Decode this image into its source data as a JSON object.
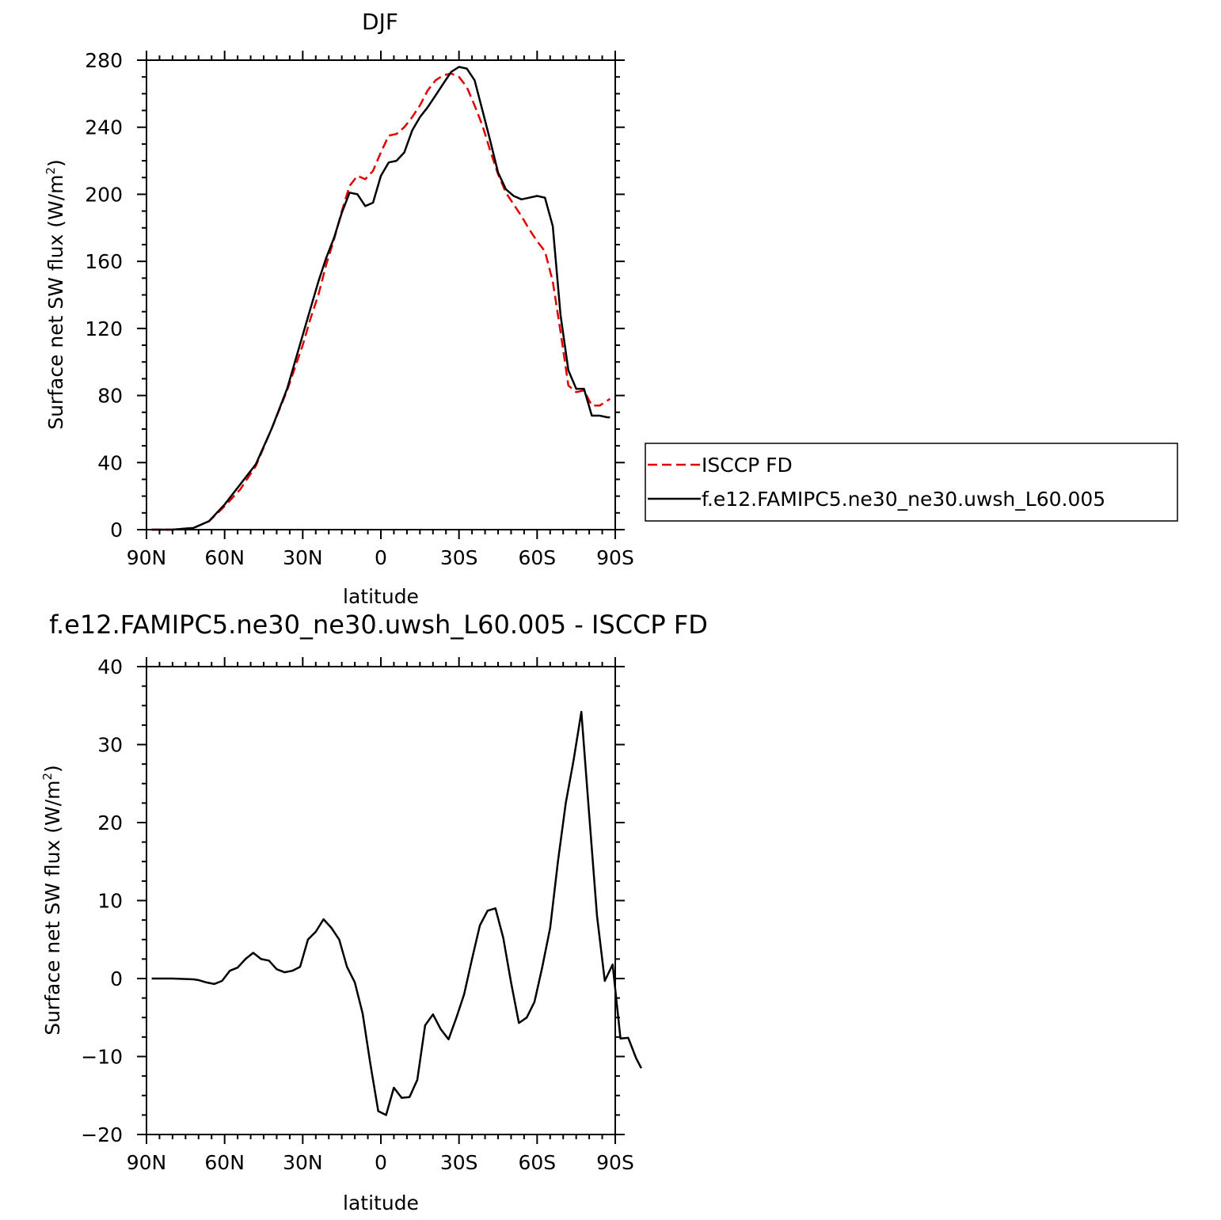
{
  "chart_data": [
    {
      "type": "line",
      "title": "DJF",
      "xlabel": "latitude",
      "ylabel": "Surface net SW flux (W/m",
      "ylabel_sup": "2",
      "ylabel_close": ")",
      "xlim": [
        90,
        -90
      ],
      "ylim": [
        0,
        280
      ],
      "x_ticks": [
        90,
        60,
        30,
        0,
        -30,
        -60,
        -90
      ],
      "x_tick_labels": [
        "90N",
        "60N",
        "30N",
        "0",
        "30S",
        "60S",
        "90S"
      ],
      "y_ticks": [
        0,
        40,
        80,
        120,
        160,
        200,
        240,
        280
      ],
      "y_tick_labels": [
        "0",
        "40",
        "80",
        "120",
        "160",
        "200",
        "240",
        "280"
      ],
      "legend": {
        "position": "right",
        "entries": [
          "ISCCP FD",
          "f.e12.FAMIPC5.ne30_ne30.uwsh_L60.005"
        ]
      },
      "series": [
        {
          "name": "ISCCP FD",
          "color": "#e00000",
          "dash": true,
          "points": [
            [
              88,
              0
            ],
            [
              80,
              0
            ],
            [
              72,
              1
            ],
            [
              66,
              5
            ],
            [
              60,
              14
            ],
            [
              54,
              24
            ],
            [
              48,
              38
            ],
            [
              42,
              60
            ],
            [
              36,
              83
            ],
            [
              30,
              110
            ],
            [
              27,
              126
            ],
            [
              24,
              140
            ],
            [
              21,
              158
            ],
            [
              18,
              173
            ],
            [
              15,
              190
            ],
            [
              12,
              205
            ],
            [
              9,
              211
            ],
            [
              6,
              209
            ],
            [
              3,
              214
            ],
            [
              0,
              225
            ],
            [
              -3,
              235
            ],
            [
              -6,
              236
            ],
            [
              -9,
              240
            ],
            [
              -12,
              246
            ],
            [
              -15,
              253
            ],
            [
              -18,
              262
            ],
            [
              -21,
              268
            ],
            [
              -24,
              271
            ],
            [
              -27,
              272
            ],
            [
              -30,
              270
            ],
            [
              -33,
              264
            ],
            [
              -36,
              253
            ],
            [
              -39,
              241
            ],
            [
              -42,
              226
            ],
            [
              -45,
              212
            ],
            [
              -48,
              201
            ],
            [
              -51,
              194
            ],
            [
              -54,
              187
            ],
            [
              -57,
              179
            ],
            [
              -60,
              172
            ],
            [
              -63,
              166
            ],
            [
              -66,
              148
            ],
            [
              -69,
              118
            ],
            [
              -72,
              86
            ],
            [
              -75,
              82
            ],
            [
              -78,
              83
            ],
            [
              -81,
              74
            ],
            [
              -84,
              74
            ],
            [
              -87,
              77
            ],
            [
              -88,
              78
            ]
          ]
        },
        {
          "name": "f.e12.FAMIPC5.ne30_ne30.uwsh_L60.005",
          "color": "#000000",
          "dash": false,
          "points": [
            [
              88,
              0
            ],
            [
              80,
              0
            ],
            [
              72,
              1
            ],
            [
              66,
              5
            ],
            [
              60,
              15
            ],
            [
              54,
              27
            ],
            [
              48,
              39
            ],
            [
              42,
              60
            ],
            [
              36,
              84
            ],
            [
              30,
              116
            ],
            [
              27,
              132
            ],
            [
              24,
              148
            ],
            [
              21,
              162
            ],
            [
              18,
              174
            ],
            [
              15,
              189
            ],
            [
              12,
              201
            ],
            [
              9,
              200
            ],
            [
              6,
              193
            ],
            [
              3,
              195
            ],
            [
              0,
              211
            ],
            [
              -3,
              219
            ],
            [
              -6,
              220
            ],
            [
              -9,
              225
            ],
            [
              -12,
              238
            ],
            [
              -15,
              246
            ],
            [
              -18,
              252
            ],
            [
              -21,
              259
            ],
            [
              -24,
              266
            ],
            [
              -27,
              273
            ],
            [
              -30,
              276
            ],
            [
              -33,
              275
            ],
            [
              -36,
              268
            ],
            [
              -39,
              250
            ],
            [
              -42,
              232
            ],
            [
              -45,
              213
            ],
            [
              -48,
              203
            ],
            [
              -51,
              199
            ],
            [
              -54,
              197
            ],
            [
              -57,
              198
            ],
            [
              -60,
              199
            ],
            [
              -63,
              198
            ],
            [
              -66,
              181
            ],
            [
              -69,
              128
            ],
            [
              -72,
              95
            ],
            [
              -75,
              84
            ],
            [
              -78,
              84
            ],
            [
              -81,
              68
            ],
            [
              -84,
              68
            ],
            [
              -87,
              67
            ],
            [
              -88,
              67
            ]
          ]
        }
      ]
    },
    {
      "type": "line",
      "title": "f.e12.FAMIPC5.ne30_ne30.uwsh_L60.005 - ISCCP FD",
      "xlabel": "latitude",
      "ylabel": "Surface net SW flux (W/m",
      "ylabel_sup": "2",
      "ylabel_close": ")",
      "xlim": [
        90,
        -90
      ],
      "ylim": [
        -20,
        40
      ],
      "x_ticks": [
        90,
        60,
        30,
        0,
        -30,
        -60,
        -90
      ],
      "x_tick_labels": [
        "90N",
        "60N",
        "30N",
        "0",
        "30S",
        "60S",
        "90S"
      ],
      "y_ticks": [
        -20,
        -10,
        0,
        10,
        20,
        30,
        40
      ],
      "y_tick_labels": [
        "−20",
        "−10",
        "0",
        "10",
        "20",
        "30",
        "40"
      ],
      "series": [
        {
          "color": "#000000",
          "dash": false,
          "points": [
            [
              88,
              0
            ],
            [
              80,
              0
            ],
            [
              72,
              -0.1
            ],
            [
              70,
              -0.2
            ],
            [
              67,
              -0.5
            ],
            [
              64,
              -0.7
            ],
            [
              61,
              -0.3
            ],
            [
              58,
              1.0
            ],
            [
              55,
              1.4
            ],
            [
              52,
              2.5
            ],
            [
              49,
              3.3
            ],
            [
              46,
              2.5
            ],
            [
              43,
              2.3
            ],
            [
              40,
              1.2
            ],
            [
              37,
              0.8
            ],
            [
              34,
              1.0
            ],
            [
              31,
              1.5
            ],
            [
              28,
              5.0
            ],
            [
              25,
              6.0
            ],
            [
              22,
              7.6
            ],
            [
              19,
              6.5
            ],
            [
              16,
              5.0
            ],
            [
              13,
              1.5
            ],
            [
              10,
              -0.5
            ],
            [
              7,
              -4.5
            ],
            [
              4,
              -11
            ],
            [
              1,
              -17
            ],
            [
              -2,
              -17.5
            ],
            [
              -5,
              -14
            ],
            [
              -8,
              -15.3
            ],
            [
              -11,
              -15.2
            ],
            [
              -14,
              -13
            ],
            [
              -17,
              -6
            ],
            [
              -20,
              -4.6
            ],
            [
              -23,
              -6.5
            ],
            [
              -26,
              -7.8
            ],
            [
              -29,
              -5
            ],
            [
              -32,
              -2
            ],
            [
              -35,
              2.5
            ],
            [
              -38,
              6.8
            ],
            [
              -41,
              8.7
            ],
            [
              -44,
              9
            ],
            [
              -47,
              5.2
            ],
            [
              -50,
              -0.5
            ],
            [
              -53,
              -5.7
            ],
            [
              -56,
              -5
            ],
            [
              -59,
              -3
            ],
            [
              -62,
              1.5
            ],
            [
              -65,
              6.5
            ],
            [
              -68,
              15
            ],
            [
              -71,
              22.5
            ],
            [
              -74,
              28
            ],
            [
              -77,
              34.2
            ],
            [
              -80,
              21
            ],
            [
              -83,
              8
            ],
            [
              -86,
              -0.3
            ],
            [
              -89,
              1.8
            ],
            [
              -92,
              -7.7
            ],
            [
              -95,
              -7.6
            ],
            [
              -98,
              -10.2
            ],
            [
              -100,
              -11.5
            ]
          ]
        }
      ]
    }
  ]
}
